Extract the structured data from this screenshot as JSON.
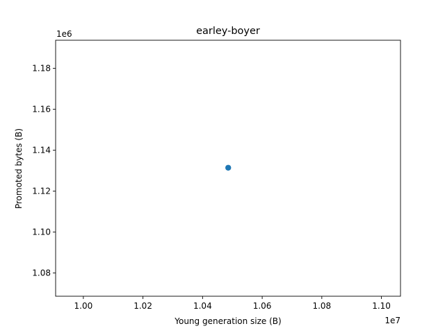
{
  "chart_data": {
    "type": "scatter",
    "title": "earley-boyer",
    "xlabel": "Young generation size (B)",
    "ylabel": "Promoted bytes (B)",
    "x_offset_label": "1e7",
    "y_offset_label": "1e6",
    "xlim": [
      0.9907,
      1.1064
    ],
    "ylim": [
      1.0686,
      1.1937
    ],
    "xticks": [
      1.0,
      1.02,
      1.04,
      1.06,
      1.08,
      1.1
    ],
    "xtick_labels": [
      "1.00",
      "1.02",
      "1.04",
      "1.06",
      "1.08",
      "1.10"
    ],
    "yticks": [
      1.08,
      1.1,
      1.12,
      1.14,
      1.16,
      1.18
    ],
    "ytick_labels": [
      "1.08",
      "1.10",
      "1.12",
      "1.14",
      "1.16",
      "1.18"
    ],
    "points": [
      {
        "x": 1.0486,
        "y": 1.1314
      }
    ],
    "point_color": "#1f77b4",
    "grid": false
  }
}
